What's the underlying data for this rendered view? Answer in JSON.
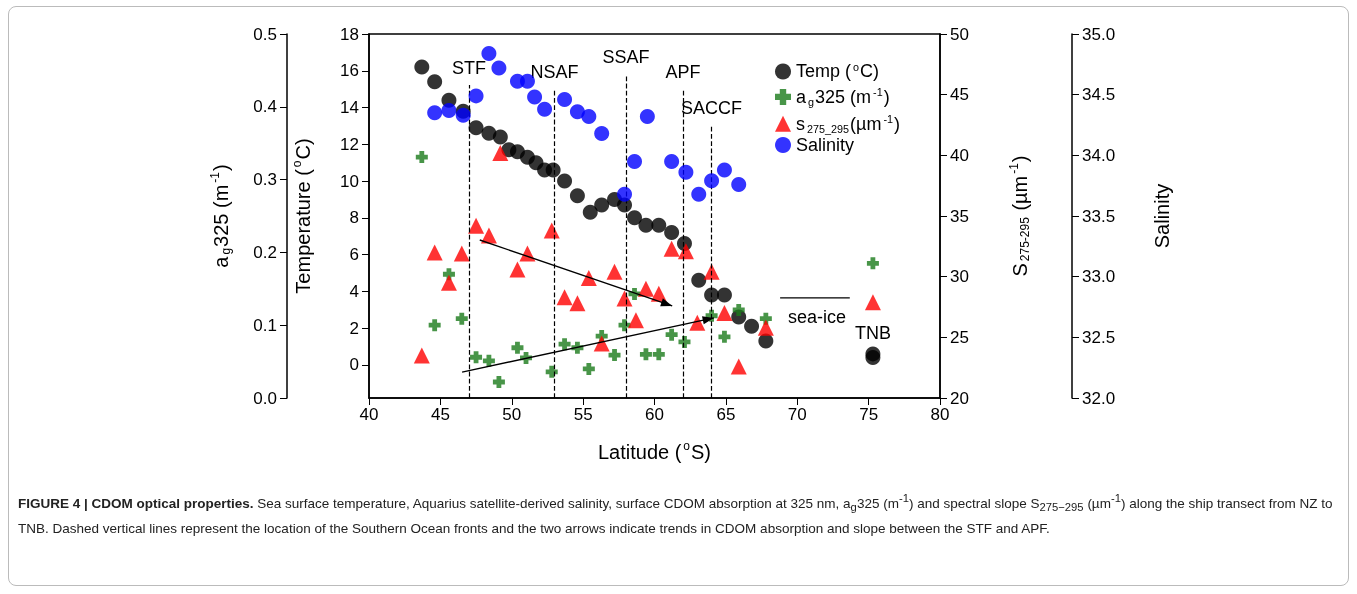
{
  "chart_data": [
    {
      "type": "scatter",
      "title": "FIGURE 4 | CDOM optical properties.",
      "xlabel": "Latitude ($^{o}$S)",
      "ylabel": "Temperature ($^{o}$C)",
      "y2label": "S$_{275-295}$ (µm$^{-1}$)",
      "y3label": "a$_{g}$325 (m$^{-1}$)",
      "xlim": [
        40,
        80
      ],
      "xticks": [
        40,
        45,
        50,
        55,
        60,
        65,
        70,
        75,
        80
      ],
      "ylim": [
        -1.8,
        18
      ],
      "yticks": [
        0,
        2,
        4,
        6,
        8,
        10,
        12,
        14,
        16,
        18
      ],
      "y2lim": [
        20,
        50
      ],
      "y2ticks": [
        20,
        25,
        30,
        35,
        40,
        45,
        50
      ],
      "y3lim": [
        0,
        0.5
      ],
      "y3ticks": [
        {
          "value": 0,
          "label": "0.0"
        },
        0.1,
        0.2,
        0.3,
        0.4,
        0.5
      ],
      "legend": "top right",
      "series": [
        {
          "name": "Temp ($^{o}$C)",
          "marker": "circle",
          "color": "#000000",
          "x": [
            43.7,
            44.6,
            45.6,
            46.6,
            47.5,
            48.4,
            49.2,
            49.8,
            50.4,
            51.1,
            51.7,
            52.3,
            52.9,
            53.7,
            54.6,
            55.5,
            56.3,
            57.2,
            57.9,
            58.6,
            59.4,
            60.3,
            61.2,
            62.1,
            63.1,
            64.0,
            64.9,
            65.9,
            66.8,
            67.8,
            75.3,
            75.3
          ],
          "values": [
            16.2,
            15.4,
            14.4,
            13.8,
            12.9,
            12.6,
            12.4,
            11.7,
            11.6,
            11.3,
            11.0,
            10.6,
            10.6,
            10.0,
            9.2,
            8.3,
            8.7,
            9.0,
            8.7,
            8.0,
            7.6,
            7.6,
            7.2,
            6.6,
            4.6,
            3.8,
            3.8,
            2.6,
            2.1,
            1.3,
            0.6,
            0.4
          ]
        },
        {
          "name": "a$_{g}$325 (m$^{-1}$)",
          "axis": "y3",
          "marker": "cross",
          "color": "#1a7a1a",
          "x": [
            43.7,
            44.6,
            45.6,
            46.5,
            47.5,
            48.4,
            49.1,
            50.4,
            51.0,
            52.8,
            53.7,
            54.6,
            55.4,
            56.3,
            57.2,
            57.9,
            58.6,
            59.4,
            60.3,
            61.2,
            62.1,
            64.0,
            64.9,
            65.9,
            67.8,
            75.3
          ],
          "values": [
            0.331,
            0.1,
            0.17,
            0.109,
            0.056,
            0.051,
            0.022,
            0.069,
            0.055,
            0.036,
            0.074,
            0.069,
            0.04,
            0.085,
            0.059,
            0.1,
            0.143,
            0.06,
            0.06,
            0.087,
            0.077,
            0.113,
            0.084,
            0.121,
            0.109,
            0.185
          ]
        },
        {
          "name": "s$_{275_295}$(µm$^{-1}$)",
          "axis": "y2",
          "marker": "triangle",
          "color": "#ff0000",
          "x": [
            43.7,
            44.6,
            45.6,
            46.5,
            47.5,
            48.4,
            49.2,
            50.4,
            51.1,
            52.8,
            53.7,
            54.6,
            55.4,
            56.3,
            57.2,
            57.9,
            58.7,
            59.4,
            60.3,
            61.2,
            62.2,
            63.0,
            64.0,
            64.9,
            65.9,
            67.8,
            75.3
          ],
          "values": [
            23.5,
            32.0,
            29.5,
            31.9,
            34.2,
            33.4,
            40.2,
            30.6,
            31.9,
            33.8,
            28.3,
            27.8,
            29.9,
            24.5,
            30.4,
            28.2,
            26.4,
            29.0,
            28.6,
            32.3,
            32.1,
            26.2,
            30.4,
            27.0,
            22.6,
            25.8,
            27.9
          ]
        }
      ],
      "ref_lines": [
        {
          "axis": "x",
          "value": 47,
          "label": "STF",
          "line_style": "dashed",
          "color": "#000000"
        },
        {
          "axis": "x",
          "value": 53,
          "label": "NSAF",
          "line_style": "dashed",
          "color": "#000000"
        },
        {
          "axis": "x",
          "value": 58,
          "label": "SSAF",
          "line_style": "dashed",
          "color": "#000000"
        },
        {
          "axis": "x",
          "value": 62,
          "label": "APF",
          "line_style": "dashed",
          "color": "#000000"
        },
        {
          "axis": "x",
          "value": 64,
          "label": "SACCF",
          "line_style": "dashed",
          "color": "#000000"
        }
      ],
      "annotations": [
        "sea-ice",
        {
          "text": "TNB",
          "x": 75.3,
          "y": 0.6
        },
        "Sea surface temperature, Aquarius satellite-derived salinity, surface CDOM absorption at 325 nm, a$_{g}$325 (m$^{-1}$) and spectral slope S$_{275−295}$ (µm$^{-1}$) along the ship transect from NZ to TNB. Dashed vertical lines represent the location of the Southern Ocean fronts and the two arrows indicate trends in CDOM absorption and slope between the STF and APF."
      ]
    },
    {
      "type": "scatter",
      "ylabel": "Salinity",
      "xlim": [
        40,
        80
      ],
      "ylim": [
        32,
        35
      ],
      "yticks": [
        {
          "value": 32,
          "label": "32.0"
        },
        32.5,
        {
          "value": 33,
          "label": "33.0"
        },
        33.5,
        {
          "value": 34,
          "label": "34.0"
        },
        34.5,
        {
          "value": 35,
          "label": "35.0"
        }
      ],
      "tick_labels": "y",
      "legend": "top right",
      "series": [
        {
          "name": "Salinity",
          "marker": "circle",
          "color": "#0000ff",
          "x": [
            44.6,
            45.6,
            46.6,
            47.5,
            48.4,
            49.1,
            50.4,
            51.1,
            51.6,
            52.3,
            53.7,
            54.6,
            55.4,
            56.3,
            57.9,
            58.6,
            59.5,
            61.2,
            62.2,
            63.1,
            64.0,
            64.9,
            65.9
          ],
          "values": [
            34.35,
            34.37,
            34.33,
            34.49,
            34.84,
            34.72,
            34.61,
            34.61,
            34.48,
            34.38,
            34.46,
            34.36,
            34.32,
            34.18,
            33.68,
            33.95,
            34.32,
            33.95,
            33.86,
            33.68,
            33.79,
            33.88,
            33.76
          ]
        }
      ]
    }
  ]
}
